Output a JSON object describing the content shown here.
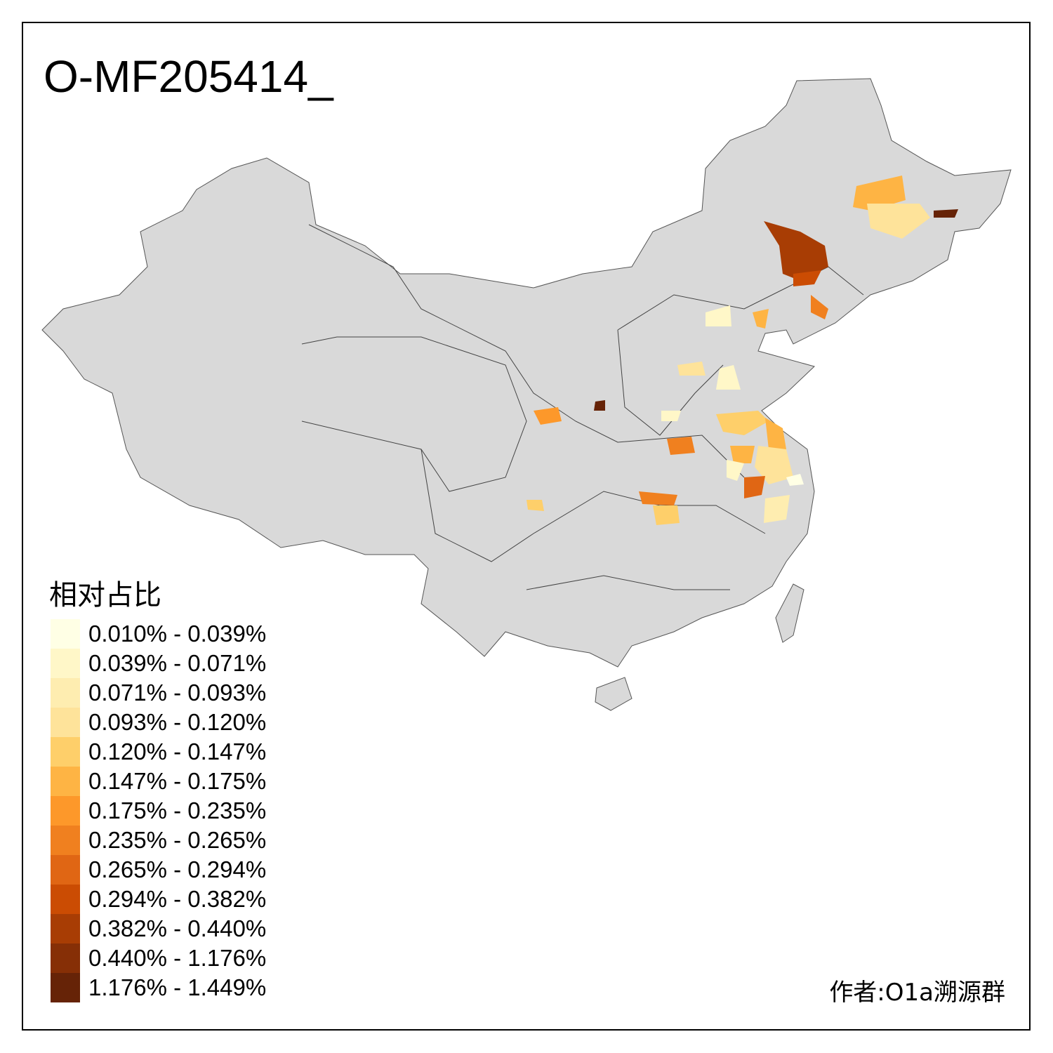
{
  "title": "O-MF205414_",
  "legend": {
    "title": "相对占比",
    "items": [
      {
        "label": "0.010% - 0.039%",
        "color": "#FFFFE5"
      },
      {
        "label": "0.039% - 0.071%",
        "color": "#FFF7C8"
      },
      {
        "label": "0.071% - 0.093%",
        "color": "#FEEDB0"
      },
      {
        "label": "0.093% - 0.120%",
        "color": "#FEE39A"
      },
      {
        "label": "0.120% - 0.147%",
        "color": "#FECF6A"
      },
      {
        "label": "0.147% - 0.175%",
        "color": "#FEB444"
      },
      {
        "label": "0.175% - 0.235%",
        "color": "#FD982A"
      },
      {
        "label": "0.235% - 0.265%",
        "color": "#F0801F"
      },
      {
        "label": "0.265% - 0.294%",
        "color": "#E06614"
      },
      {
        "label": "0.294% - 0.382%",
        "color": "#CB4C03"
      },
      {
        "label": "0.382% - 0.440%",
        "color": "#A83D04"
      },
      {
        "label": "0.440% - 1.176%",
        "color": "#862F06"
      },
      {
        "label": "1.176% - 1.449%",
        "color": "#662307"
      }
    ]
  },
  "author": "作者:O1a溯源群",
  "map": {
    "base_color": "#D9D9D9",
    "border_color": "#555555"
  }
}
